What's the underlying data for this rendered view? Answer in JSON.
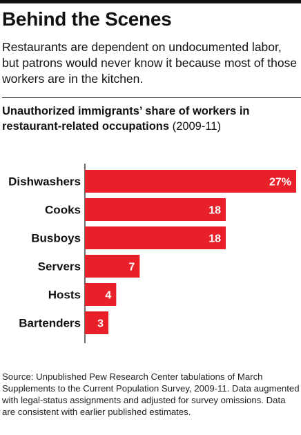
{
  "headline": "Behind the Scenes",
  "dek": "Restaurants are dependent on undocumented labor, but patrons would never know it because most of those workers are in the kitchen.",
  "chart_title": "Unauthorized immigrants’ share of workers in restaurant-related occupations",
  "chart_period": "(2009-11)",
  "source": "Source: Unpublished Pew Research Center tabulations of March Supplements to the Current Population Survey, 2009-11. Data augmented with legal-status assignments and adjusted for survey omissions. Data are consistent with earlier published estimates.",
  "colors": {
    "bar": "#e8202a",
    "text": "#111111",
    "value_text": "#ffffff"
  },
  "chart_data": {
    "type": "bar",
    "orientation": "horizontal",
    "title": "Unauthorized immigrants’ share of workers in restaurant-related occupations",
    "subtitle": "(2009-11)",
    "categories": [
      "Dishwashers",
      "Cooks",
      "Busboys",
      "Servers",
      "Hosts",
      "Bartenders"
    ],
    "values": [
      27,
      18,
      18,
      7,
      4,
      3
    ],
    "value_labels": [
      "27%",
      "18",
      "18",
      "7",
      "4",
      "3"
    ],
    "xlabel": "",
    "ylabel": "",
    "xlim": [
      0,
      27
    ],
    "grid": false,
    "legend": "none"
  }
}
